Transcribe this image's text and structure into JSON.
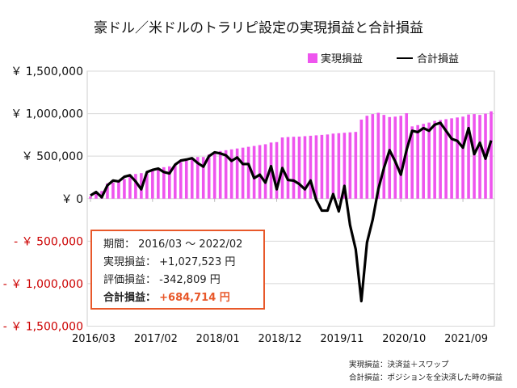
{
  "chart_data": {
    "type": "bar+line",
    "title": "豪ドル／米ドルのトラリピ設定の実現損益と合計損益",
    "xlabel": "",
    "ylabel": "",
    "ylim": [
      -1500000,
      1500000
    ],
    "yticks": [
      1500000,
      1000000,
      500000,
      0,
      -500000,
      -1000000,
      -1500000
    ],
    "ytick_labels": [
      "￥ 1,500,000",
      "￥ 1,000,000",
      "￥ 500,000",
      "￥ 0",
      "- ￥ 500,000",
      "- ￥ 1,000,000",
      "- ￥ 1,500,000"
    ],
    "xtick_labels": [
      "2016/03",
      "2017/02",
      "2018/01",
      "2018/12",
      "2019/11",
      "2020/10",
      "2021/09"
    ],
    "x_start": "2016/03",
    "x_end": "2022/02",
    "grid": true,
    "legend_position": "top-right",
    "series": [
      {
        "name": "実現損益",
        "type": "bar",
        "color": "#ee55ee",
        "values": [
          25000,
          60000,
          90000,
          180000,
          190000,
          200000,
          230000,
          260000,
          290000,
          300000,
          320000,
          340000,
          360000,
          370000,
          380000,
          400000,
          430000,
          450000,
          470000,
          490000,
          490000,
          520000,
          550000,
          560000,
          570000,
          580000,
          590000,
          600000,
          610000,
          620000,
          630000,
          640000,
          660000,
          665000,
          720000,
          725000,
          728000,
          730000,
          735000,
          740000,
          745000,
          750000,
          755000,
          765000,
          770000,
          775000,
          780000,
          785000,
          930000,
          975000,
          995000,
          1010000,
          985000,
          960000,
          965000,
          975000,
          1005000,
          850000,
          865000,
          880000,
          895000,
          915000,
          925000,
          935000,
          945000,
          955000,
          965000,
          990000,
          995000,
          985000,
          1000000,
          1027523
        ]
      },
      {
        "name": "合計損益",
        "type": "line",
        "color": "#000000",
        "values": [
          37000,
          78000,
          16000,
          156000,
          213000,
          203000,
          257000,
          275000,
          203000,
          110000,
          313000,
          338000,
          354000,
          313000,
          297000,
          400000,
          448000,
          460000,
          476000,
          419000,
          376000,
          500000,
          545000,
          532000,
          510000,
          444000,
          485000,
          407000,
          407000,
          241000,
          282000,
          188000,
          382000,
          110000,
          360000,
          219000,
          213000,
          172000,
          110000,
          213000,
          -16000,
          -141000,
          -141000,
          53000,
          -150000,
          150000,
          -313000,
          -595000,
          -1205000,
          -516000,
          -250000,
          110000,
          360000,
          570000,
          438000,
          282000,
          570000,
          798000,
          783000,
          830000,
          798000,
          870000,
          892000,
          798000,
          704000,
          680000,
          600000,
          830000,
          523000,
          657000,
          470000,
          684714
        ]
      }
    ]
  },
  "infobox": {
    "period_label": "期間：",
    "period_value": "2016/03 ～ 2022/02",
    "realized_label": "実現損益：",
    "realized_value": "+1,027,523 円",
    "unrealized_label": "評価損益：",
    "unrealized_value": "-342,809 円",
    "total_label": "合計損益：",
    "total_value": "+684,714 円",
    "accent_color": "#e8582a"
  },
  "footnotes": [
    "実現損益：決済益＋スワップ",
    "合計損益：ポジションを全決済した時の損益"
  ],
  "negative_label_color": "#cc0000"
}
